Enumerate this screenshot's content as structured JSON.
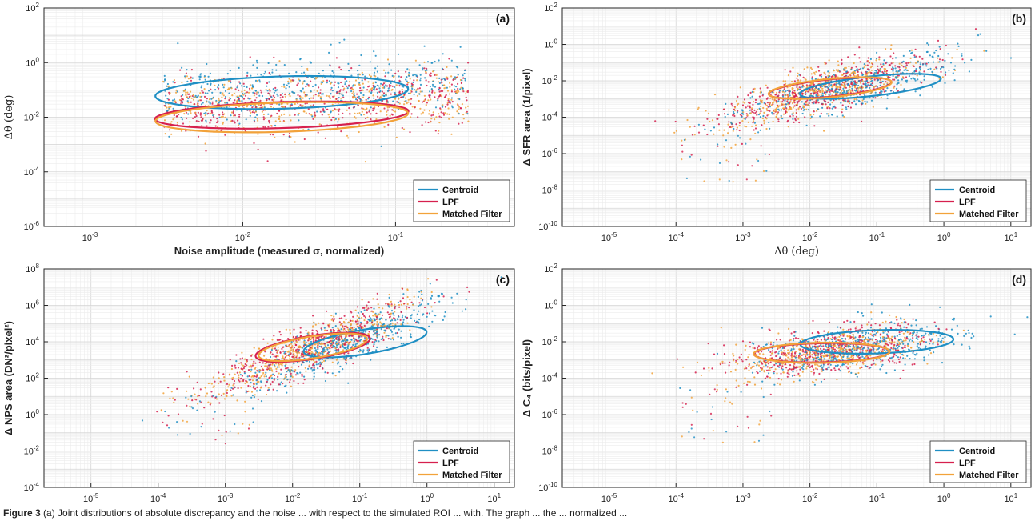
{
  "colors": {
    "centroid": "#1f8fc4",
    "lpf": "#d6204e",
    "matched_filter": "#f2a23a"
  },
  "caption": {
    "label": "Figure 3",
    "text": "(a) Joint distributions of absolute discrepancy and the noise ... with respect to the simulated ROI ... with. The graph ... the ... normalized ..."
  },
  "chart_data": [
    {
      "panel": "(a)",
      "type": "scatter",
      "scale": "log-log",
      "xlabel": "Noise amplitude (measured σ, normalized)",
      "ylabel": "Δθ (deg)",
      "xlim": [
        0.0005,
        0.6
      ],
      "ylim": [
        1e-06,
        100
      ],
      "xticks": [
        "10^-3",
        "10^-2",
        "10^-1"
      ],
      "yticks": [
        "10^-6",
        "10^-4",
        "10^-2",
        "10^0",
        "10^2"
      ],
      "grid": true,
      "legend": {
        "placement": "bottom-right",
        "entries": [
          "Centroid",
          "LPF",
          "Matched Filter"
        ]
      },
      "cloud": {
        "x_range": [
          0.003,
          0.3
        ],
        "y_center": 0.03,
        "y_spread_decades": 1.0
      },
      "series": [
        {
          "name": "Centroid",
          "color": "#1f8fc4",
          "ellipse": {
            "cx": 0.018,
            "cy": 0.08,
            "log_rx": 1.54,
            "log_ry": 1.05,
            "angle_deg": 17
          }
        },
        {
          "name": "LPF",
          "color": "#d6204e",
          "ellipse": {
            "cx": 0.018,
            "cy": 0.012,
            "log_rx": 1.54,
            "log_ry": 0.85,
            "angle_deg": 14
          }
        },
        {
          "name": "Matched Filter",
          "color": "#f2a23a",
          "ellipse": {
            "cx": 0.018,
            "cy": 0.01,
            "log_rx": 1.54,
            "log_ry": 0.95,
            "angle_deg": 16
          }
        }
      ]
    },
    {
      "panel": "(b)",
      "type": "scatter",
      "scale": "log-log",
      "xlabel": "Δθ (deg)",
      "ylabel": "Δ SFR area (1/pixel)",
      "xlim": [
        2e-06,
        20
      ],
      "ylim": [
        1e-10,
        100
      ],
      "xticks": [
        "10^-5",
        "10^-4",
        "10^-3",
        "10^-2",
        "10^-1",
        "10^0",
        "10^1"
      ],
      "yticks": [
        "10^-10",
        "10^-8",
        "10^-6",
        "10^-4",
        "10^-2",
        "10^0",
        "10^2"
      ],
      "grid": true,
      "legend": {
        "placement": "bottom-right",
        "entries": [
          "Centroid",
          "LPF",
          "Matched Filter"
        ]
      },
      "cloud": {
        "x_center": 0.015,
        "y_center": 0.003,
        "slope": 0.7
      },
      "series": [
        {
          "name": "Centroid",
          "color": "#1f8fc4",
          "ellipse": {
            "cx": 0.08,
            "cy": 0.005,
            "log_rx": 2.1,
            "log_ry": 0.9,
            "angle_deg": 27
          }
        },
        {
          "name": "LPF",
          "color": "#d6204e",
          "ellipse": {
            "cx": 0.02,
            "cy": 0.004,
            "log_rx": 1.8,
            "log_ry": 0.8,
            "angle_deg": 25
          }
        },
        {
          "name": "Matched Filter",
          "color": "#f2a23a",
          "ellipse": {
            "cx": 0.02,
            "cy": 0.004,
            "log_rx": 1.8,
            "log_ry": 0.85,
            "angle_deg": 25
          }
        }
      ]
    },
    {
      "panel": "(c)",
      "type": "scatter",
      "scale": "log-log",
      "xlabel": "Δθ (deg)",
      "ylabel": "Δ NPS area (DN²/pixel²)",
      "xlim": [
        2e-06,
        20
      ],
      "ylim": [
        0.0001,
        100000000.0
      ],
      "xticks": [
        "10^-5",
        "10^-4",
        "10^-3",
        "10^-2",
        "10^-1",
        "10^0",
        "10^1"
      ],
      "yticks": [
        "10^-4",
        "10^-2",
        "10^0",
        "10^2",
        "10^4",
        "10^6",
        "10^8"
      ],
      "grid": true,
      "legend": {
        "placement": "bottom-right",
        "entries": [
          "Centroid",
          "LPF",
          "Matched Filter"
        ]
      },
      "cloud": {
        "x_center": 0.02,
        "y_center": 5000,
        "slope": 1.1
      },
      "series": [
        {
          "name": "Centroid",
          "color": "#1f8fc4",
          "ellipse": {
            "cx": 0.12,
            "cy": 10000,
            "log_rx": 2.05,
            "log_ry": 1.0,
            "angle_deg": 42
          }
        },
        {
          "name": "LPF",
          "color": "#d6204e",
          "ellipse": {
            "cx": 0.02,
            "cy": 5000,
            "log_rx": 1.9,
            "log_ry": 0.95,
            "angle_deg": 42
          }
        },
        {
          "name": "Matched Filter",
          "color": "#f2a23a",
          "ellipse": {
            "cx": 0.02,
            "cy": 5000,
            "log_rx": 1.8,
            "log_ry": 0.9,
            "angle_deg": 42
          }
        }
      ]
    },
    {
      "panel": "(d)",
      "type": "scatter",
      "scale": "log-log",
      "xlabel": "Δθ (deg)",
      "ylabel": "Δ C₄ (bits/pixel)",
      "xlim": [
        2e-06,
        20
      ],
      "ylim": [
        1e-10,
        100
      ],
      "xticks": [
        "10^-5",
        "10^-4",
        "10^-3",
        "10^-2",
        "10^-1",
        "10^0",
        "10^1"
      ],
      "yticks": [
        "10^-10",
        "10^-8",
        "10^-6",
        "10^-4",
        "10^-2",
        "10^0",
        "10^2"
      ],
      "grid": true,
      "legend": {
        "placement": "bottom-right",
        "entries": [
          "Centroid",
          "LPF",
          "Matched Filter"
        ]
      },
      "cloud": {
        "x_center": 0.02,
        "y_center": 0.003,
        "slope": 0.35
      },
      "series": [
        {
          "name": "Centroid",
          "color": "#1f8fc4",
          "ellipse": {
            "cx": 0.1,
            "cy": 0.01,
            "log_rx": 2.1,
            "log_ry": 1.15,
            "angle_deg": 10
          }
        },
        {
          "name": "LPF",
          "color": "#d6204e",
          "ellipse": {
            "cx": 0.015,
            "cy": 0.0025,
            "log_rx": 1.85,
            "log_ry": 0.95,
            "angle_deg": 5
          }
        },
        {
          "name": "Matched Filter",
          "color": "#f2a23a",
          "ellipse": {
            "cx": 0.015,
            "cy": 0.0025,
            "log_rx": 1.85,
            "log_ry": 1.0,
            "angle_deg": 5
          }
        }
      ]
    }
  ]
}
